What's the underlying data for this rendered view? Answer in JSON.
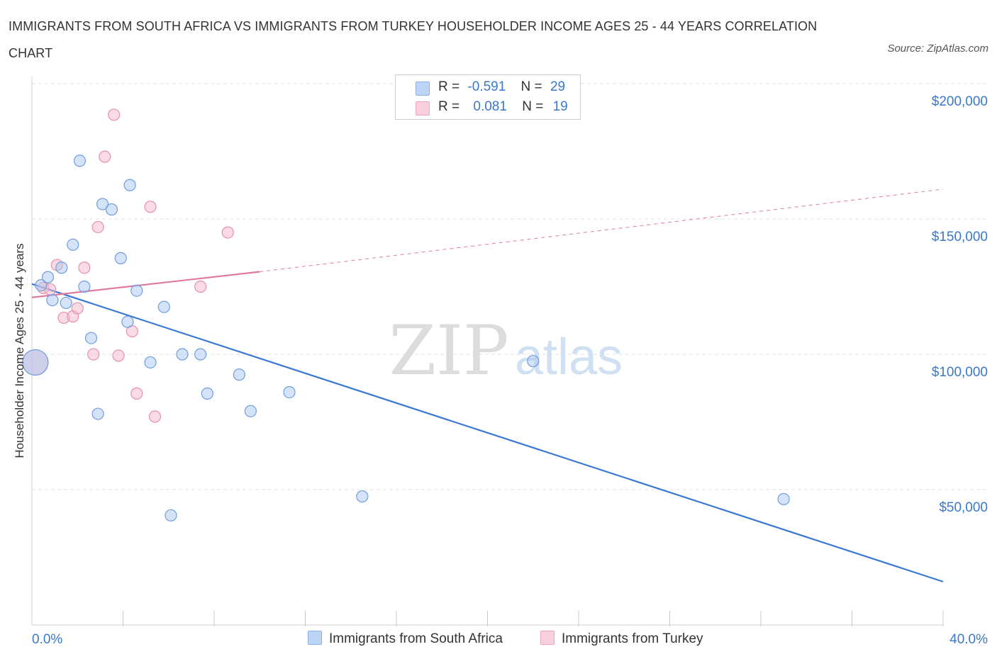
{
  "header": {
    "title": "IMMIGRANTS FROM SOUTH AFRICA VS IMMIGRANTS FROM TURKEY HOUSEHOLDER INCOME AGES 25 - 44 YEARS CORRELATION CHART",
    "source": "Source: ZipAtlas.com"
  },
  "watermark": {
    "zip": "ZIP",
    "atlas": "atlas"
  },
  "legend": {
    "rows": [
      {
        "r_label": "R =",
        "r_value": "-0.591",
        "n_label": "N =",
        "n_value": "29"
      },
      {
        "r_label": "R =",
        "r_value": "0.081",
        "n_label": "N =",
        "n_value": "19"
      }
    ]
  },
  "colors": {
    "south_africa": "#a9c8f0",
    "south_africa_line": "#3a78d4",
    "turkey": "#f5b8cb",
    "turkey_line": "#e07a9c",
    "tick_label": "#3a78c9",
    "grid": "#e2e2e2"
  },
  "chart_data": {
    "type": "scatter",
    "title": "IMMIGRANTS FROM SOUTH AFRICA VS IMMIGRANTS FROM TURKEY HOUSEHOLDER INCOME AGES 25 - 44 YEARS CORRELATION CHART",
    "xlabel": "",
    "ylabel": "Householder Income Ages 25 - 44 years",
    "xlim": [
      0,
      40
    ],
    "ylim": [
      0,
      200000
    ],
    "x_tick_labels": [
      "0.0%",
      "40.0%"
    ],
    "y_ticks": [
      50000,
      100000,
      150000,
      200000
    ],
    "y_tick_labels": [
      "$50,000",
      "$100,000",
      "$150,000",
      "$200,000"
    ],
    "grid": true,
    "legend_position": "top-center",
    "series": [
      {
        "name": "Immigrants from South Africa",
        "points": [
          [
            0.4,
            125500
          ],
          [
            0.7,
            128500
          ],
          [
            0.9,
            120000
          ],
          [
            1.3,
            132000
          ],
          [
            1.5,
            119000
          ],
          [
            1.8,
            140500
          ],
          [
            2.1,
            171500
          ],
          [
            2.3,
            125000
          ],
          [
            2.6,
            106000
          ],
          [
            2.9,
            78000
          ],
          [
            3.1,
            155500
          ],
          [
            3.5,
            153500
          ],
          [
            3.9,
            135500
          ],
          [
            4.2,
            112000
          ],
          [
            4.3,
            162500
          ],
          [
            4.6,
            123500
          ],
          [
            5.2,
            97000
          ],
          [
            5.8,
            117500
          ],
          [
            6.1,
            40500
          ],
          [
            6.6,
            100000
          ],
          [
            7.7,
            85500
          ],
          [
            7.4,
            100000
          ],
          [
            9.1,
            92500
          ],
          [
            9.6,
            79000
          ],
          [
            11.3,
            86000
          ],
          [
            14.5,
            47500
          ],
          [
            22.0,
            97500
          ],
          [
            33.0,
            46500
          ],
          [
            0.15,
            97000
          ]
        ],
        "trend": {
          "x": [
            0,
            40
          ],
          "y": [
            126000,
            16000
          ]
        }
      },
      {
        "name": "Immigrants from Turkey",
        "points": [
          [
            0.5,
            124500
          ],
          [
            0.8,
            124000
          ],
          [
            1.1,
            133000
          ],
          [
            1.4,
            113500
          ],
          [
            1.8,
            114000
          ],
          [
            2.0,
            117000
          ],
          [
            2.3,
            132000
          ],
          [
            2.7,
            100000
          ],
          [
            2.9,
            147000
          ],
          [
            3.2,
            173000
          ],
          [
            3.6,
            188500
          ],
          [
            3.8,
            99500
          ],
          [
            4.4,
            108500
          ],
          [
            4.6,
            85500
          ],
          [
            5.4,
            77000
          ],
          [
            5.2,
            154500
          ],
          [
            7.4,
            125000
          ],
          [
            8.6,
            145000
          ],
          [
            0.15,
            97000
          ]
        ],
        "trend_solid": {
          "x": [
            0,
            10
          ],
          "y": [
            121000,
            130500
          ]
        },
        "trend_dashed": {
          "x": [
            10,
            40
          ],
          "y": [
            130500,
            161000
          ]
        }
      }
    ]
  }
}
